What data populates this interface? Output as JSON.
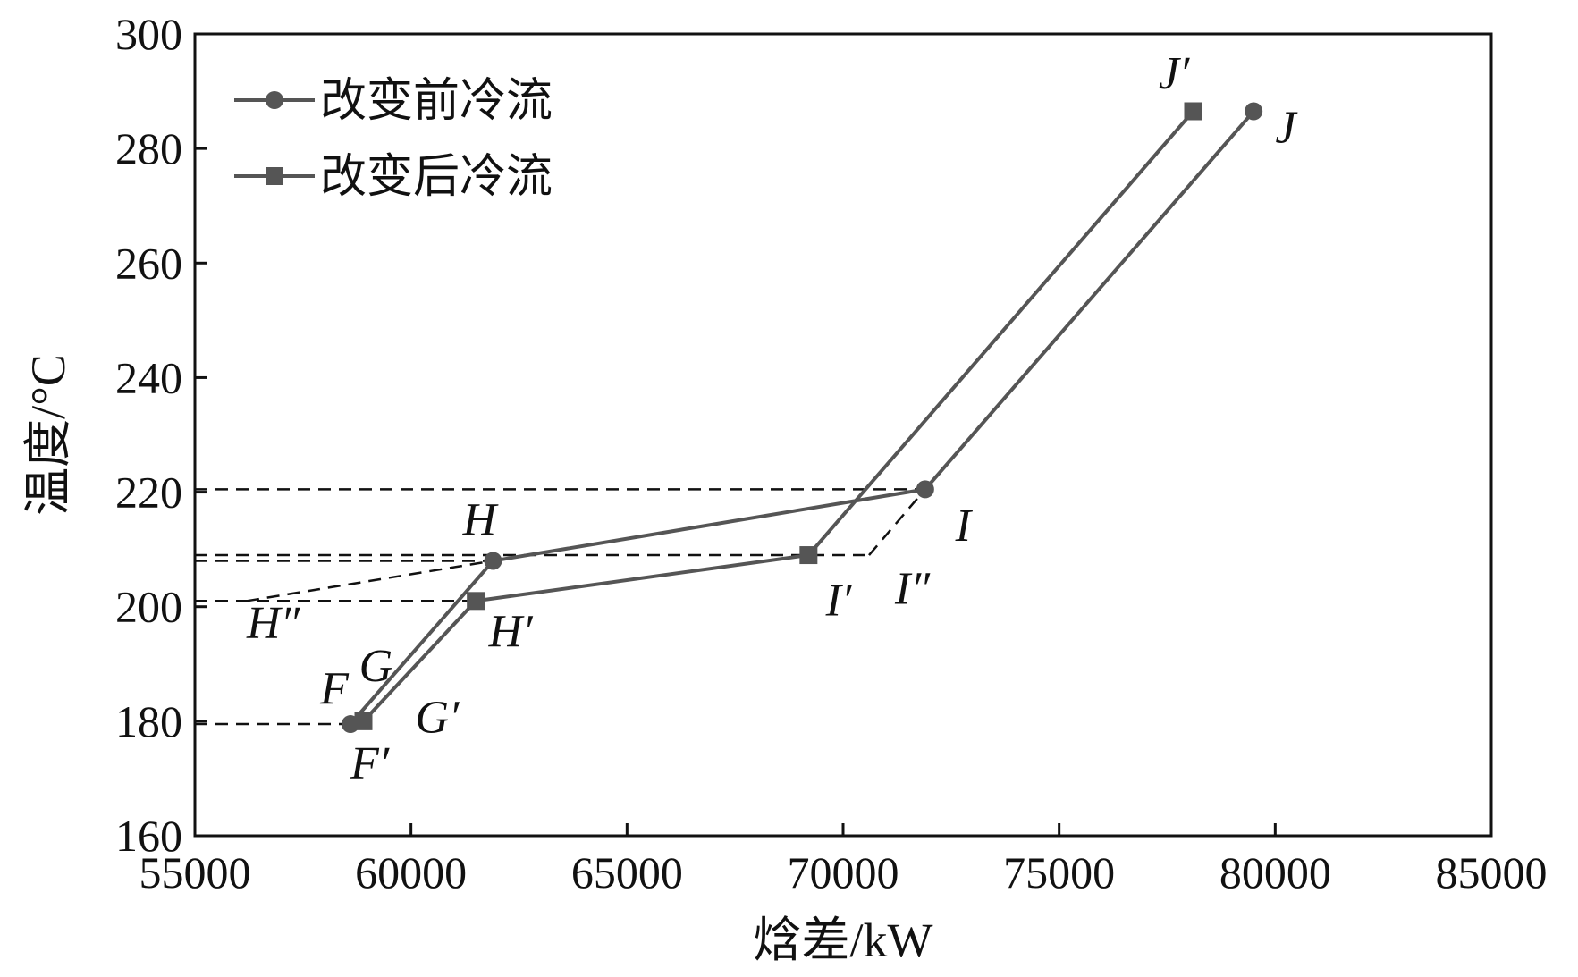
{
  "chart_data": {
    "type": "line",
    "xlabel": "焓差/kW",
    "ylabel": "温度/°C",
    "xlim": [
      55000,
      85000
    ],
    "ylim": [
      160,
      300
    ],
    "xticks": [
      55000,
      60000,
      65000,
      70000,
      75000,
      80000,
      85000
    ],
    "yticks": [
      160,
      180,
      200,
      220,
      240,
      260,
      280,
      300
    ],
    "grid": false,
    "legend_position": "top-left",
    "colors": {
      "series": "#555555",
      "guide": "#111111"
    },
    "series": [
      {
        "name": "改变前冷流",
        "marker": "circle",
        "points": [
          {
            "x": 58600,
            "y": 179.5
          },
          {
            "x": 61900,
            "y": 208
          },
          {
            "x": 71900,
            "y": 220.5
          },
          {
            "x": 79500,
            "y": 286.5
          }
        ]
      },
      {
        "name": "改变后冷流",
        "marker": "square",
        "points": [
          {
            "x": 58900,
            "y": 180
          },
          {
            "x": 61500,
            "y": 201
          },
          {
            "x": 69200,
            "y": 209
          },
          {
            "x": 78100,
            "y": 286.5
          }
        ]
      }
    ],
    "guides": [
      [
        {
          "x": 55000,
          "y": 220.5
        },
        {
          "x": 71900,
          "y": 220.5
        }
      ],
      [
        {
          "x": 55000,
          "y": 209
        },
        {
          "x": 70600,
          "y": 209
        }
      ],
      [
        {
          "x": 70600,
          "y": 209
        },
        {
          "x": 71900,
          "y": 220.5
        }
      ],
      [
        {
          "x": 55000,
          "y": 208
        },
        {
          "x": 61900,
          "y": 208
        }
      ],
      [
        {
          "x": 55000,
          "y": 201
        },
        {
          "x": 61500,
          "y": 201
        }
      ],
      [
        {
          "x": 56200,
          "y": 201
        },
        {
          "x": 61900,
          "y": 208
        }
      ],
      [
        {
          "x": 55000,
          "y": 179.5
        },
        {
          "x": 58900,
          "y": 179.5
        }
      ]
    ],
    "annotations": [
      {
        "text": "J′",
        "x": 77300,
        "y": 290.5
      },
      {
        "text": "J",
        "x": 80000,
        "y": 281
      },
      {
        "text": "I",
        "x": 72600,
        "y": 211.5
      },
      {
        "text": "I′",
        "x": 69600,
        "y": 198.5
      },
      {
        "text": "I″",
        "x": 71200,
        "y": 200.5
      },
      {
        "text": "H",
        "x": 61200,
        "y": 212.5
      },
      {
        "text": "H″",
        "x": 56200,
        "y": 194.5
      },
      {
        "text": "H′",
        "x": 61800,
        "y": 193
      },
      {
        "text": "G",
        "x": 58800,
        "y": 187
      },
      {
        "text": "F",
        "x": 57900,
        "y": 183
      },
      {
        "text": "G′",
        "x": 60100,
        "y": 178
      },
      {
        "text": "F′",
        "x": 58600,
        "y": 170
      }
    ]
  }
}
